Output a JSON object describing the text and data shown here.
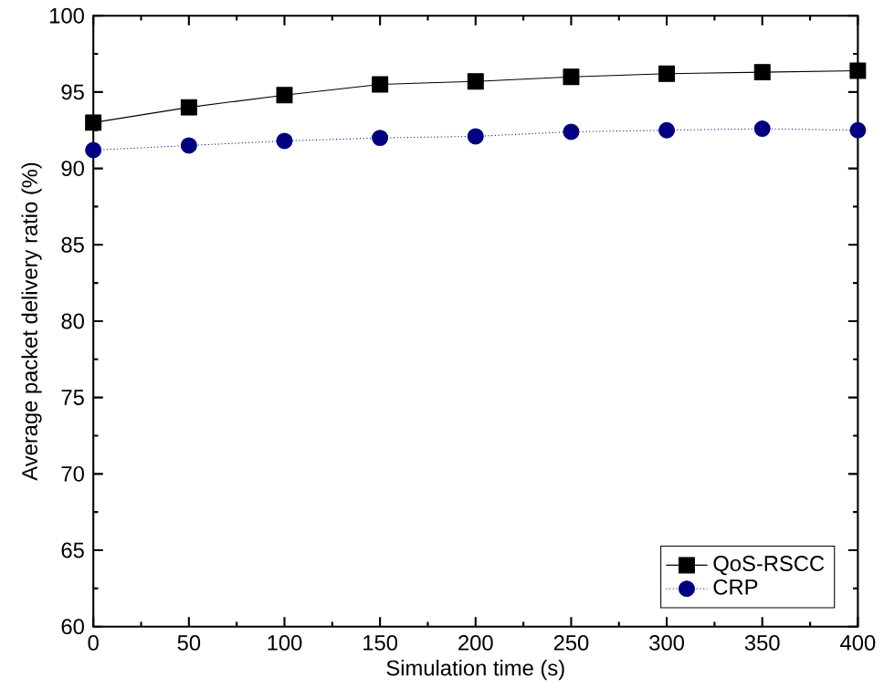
{
  "chart_data": {
    "type": "line",
    "xlabel": "Simulation time (s)",
    "ylabel": "Average packet delivery ratio (%)",
    "x": [
      0,
      50,
      100,
      150,
      200,
      250,
      300,
      350,
      400
    ],
    "series": [
      {
        "name": "QoS-RSCC",
        "color": "#000000",
        "marker": "square",
        "line_style": "solid",
        "values": [
          93.0,
          94.0,
          94.8,
          95.5,
          95.7,
          96.0,
          96.2,
          96.3,
          96.4
        ]
      },
      {
        "name": "CRP",
        "color": "#000080",
        "marker": "circle",
        "line_style": "dotted",
        "values": [
          91.2,
          91.5,
          91.8,
          92.0,
          92.1,
          92.4,
          92.5,
          92.6,
          92.5
        ]
      }
    ],
    "xlim": [
      0,
      400
    ],
    "ylim": [
      60,
      100
    ],
    "xticks": [
      0,
      50,
      100,
      150,
      200,
      250,
      300,
      350,
      400
    ],
    "yticks": [
      60,
      65,
      70,
      75,
      80,
      85,
      90,
      95,
      100
    ],
    "grid": false,
    "legend": "bottom right"
  }
}
